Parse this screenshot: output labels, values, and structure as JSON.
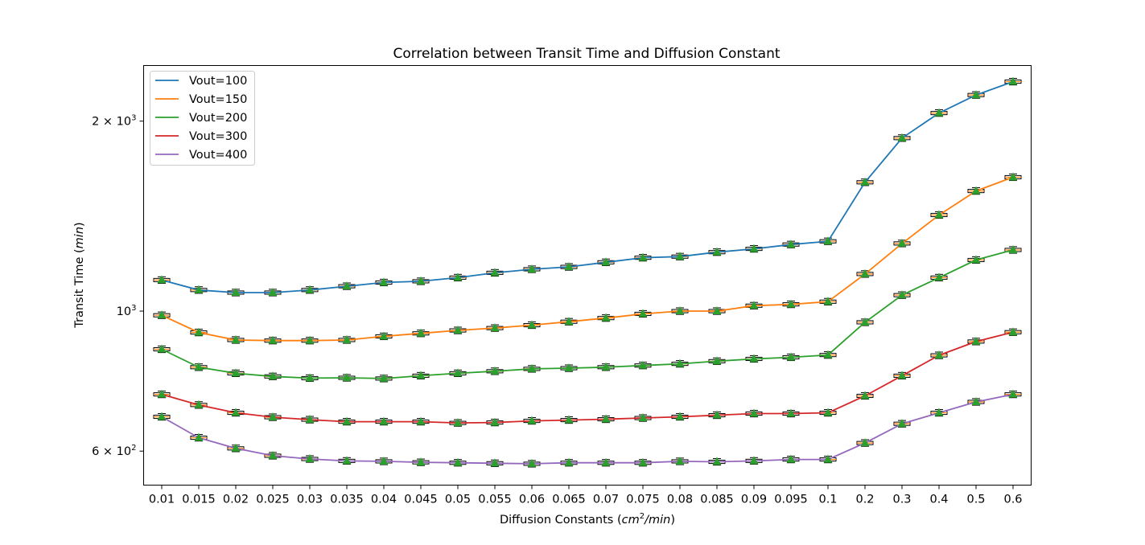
{
  "chart_data": {
    "type": "line",
    "title": "Correlation between Transit Time and Diffusion Constant",
    "xlabel_main": "Diffusion Constants (",
    "xlabel_math": "cm",
    "xlabel_sup": "2",
    "xlabel_math2": "/min",
    "xlabel_end": ")",
    "ylabel_main": "Transit Time (",
    "ylabel_math": "min",
    "ylabel_end": ")",
    "y_scale": "log",
    "ylim": [
      530,
      2450
    ],
    "y_ticks": [
      {
        "value": 600,
        "mantissa": "6",
        "base": "10",
        "exp": "2"
      },
      {
        "value": 1000,
        "mantissa": "",
        "base": "10",
        "exp": "3"
      },
      {
        "value": 2000,
        "mantissa": "2",
        "base": "10",
        "exp": "3"
      }
    ],
    "categories": [
      "0.01",
      "0.015",
      "0.02",
      "0.025",
      "0.03",
      "0.035",
      "0.04",
      "0.045",
      "0.05",
      "0.055",
      "0.06",
      "0.065",
      "0.07",
      "0.075",
      "0.08",
      "0.085",
      "0.09",
      "0.095",
      "0.1",
      "0.2",
      "0.3",
      "0.4",
      "0.5",
      "0.6"
    ],
    "legend_position": "upper-left",
    "grid": false,
    "series": [
      {
        "name": "Vout=100",
        "color": "#1f77b4",
        "values": [
          1120,
          1080,
          1070,
          1070,
          1080,
          1095,
          1110,
          1115,
          1130,
          1150,
          1165,
          1175,
          1195,
          1215,
          1220,
          1240,
          1255,
          1275,
          1290,
          1600,
          1880,
          2060,
          2200,
          2310
        ]
      },
      {
        "name": "Vout=150",
        "color": "#ff7f0e",
        "values": [
          985,
          925,
          900,
          898,
          898,
          900,
          912,
          922,
          932,
          940,
          950,
          962,
          975,
          990,
          1000,
          1000,
          1020,
          1025,
          1035,
          1145,
          1280,
          1420,
          1550,
          1630
        ]
      },
      {
        "name": "Vout=200",
        "color": "#2ca02c",
        "values": [
          870,
          815,
          797,
          788,
          783,
          784,
          782,
          790,
          797,
          803,
          810,
          812,
          815,
          820,
          825,
          833,
          840,
          845,
          852,
          960,
          1060,
          1130,
          1205,
          1250
        ]
      },
      {
        "name": "Vout=300",
        "color": "#d62728",
        "values": [
          738,
          710,
          690,
          679,
          673,
          668,
          668,
          668,
          665,
          666,
          670,
          672,
          674,
          677,
          680,
          684,
          688,
          688,
          690,
          734,
          790,
          851,
          895,
          926
        ]
      },
      {
        "name": "Vout=400",
        "color": "#9467bd",
        "values": [
          680,
          630,
          606,
          590,
          583,
          579,
          578,
          576,
          575,
          574,
          573,
          575,
          575,
          575,
          578,
          577,
          579,
          582,
          582,
          618,
          663,
          690,
          718,
          738
        ]
      }
    ]
  }
}
